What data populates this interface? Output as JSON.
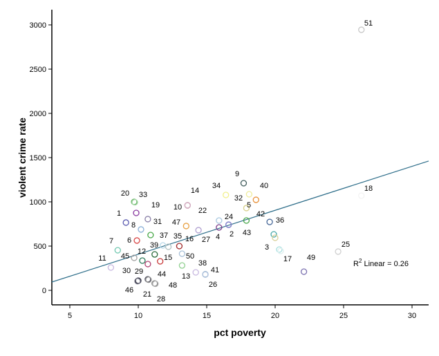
{
  "chart_data": {
    "type": "scatter",
    "xlabel": "pct poverty",
    "ylabel": "violent crime rate",
    "xlim": [
      3.7,
      31.3
    ],
    "ylim": [
      -160,
      3130
    ],
    "xticks": [
      "5",
      "10",
      "15",
      "20",
      "25",
      "30"
    ],
    "yticks": [
      "0",
      "500",
      "1000",
      "1500",
      "2000",
      "2500",
      "3000"
    ],
    "grid": false,
    "fit": {
      "type": "linear",
      "intercept": -89.5,
      "slope": 49.7,
      "color": "#2e6e8a",
      "label": "R",
      "label_sup": "2",
      "label_rest": " Linear = 0.26"
    },
    "points": [
      {
        "label": "51",
        "x": 26.3,
        "y": 2945,
        "color": "#c8c8c8"
      },
      {
        "label": "9",
        "x": 17.7,
        "y": 1211,
        "color": "#3d5a5a"
      },
      {
        "label": "34",
        "x": 16.4,
        "y": 1078,
        "color": "#f2f08c"
      },
      {
        "label": "32",
        "x": 18.1,
        "y": 1086,
        "color": "#f0ec9a"
      },
      {
        "label": "40",
        "x": 18.6,
        "y": 1023,
        "color": "#e8913a"
      },
      {
        "label": "5",
        "x": 17.9,
        "y": 930,
        "color": "#d8d08a"
      },
      {
        "label": "24",
        "x": 17.9,
        "y": 789,
        "color": "#4aa84a"
      },
      {
        "label": "4",
        "x": 16.6,
        "y": 742,
        "color": "#5a5ab8"
      },
      {
        "label": "2",
        "x": 16.6,
        "y": 740,
        "color": "#8888cc"
      },
      {
        "label": "27",
        "x": 15.9,
        "y": 711,
        "color": "#7a3a8a"
      },
      {
        "label": "22",
        "x": 15.9,
        "y": 789,
        "color": "#a8c8e0"
      },
      {
        "label": "16",
        "x": 14.4,
        "y": 680,
        "color": "#b0a0d0"
      },
      {
        "label": "10",
        "x": 13.6,
        "y": 961,
        "color": "#a04070"
      },
      {
        "label": "14",
        "x": 13.6,
        "y": 963,
        "color": "#d8b8c8"
      },
      {
        "label": "47",
        "x": 13.5,
        "y": 727,
        "color": "#e8a040"
      },
      {
        "label": "36",
        "x": 19.6,
        "y": 773,
        "color": "#4a6a9a"
      },
      {
        "label": "42",
        "x": 19.9,
        "y": 633,
        "color": "#48a8a8"
      },
      {
        "label": "43",
        "x": 20.0,
        "y": 594,
        "color": "#d8d098"
      },
      {
        "label": "3",
        "x": 20.3,
        "y": 461,
        "color": "#a8e0e0"
      },
      {
        "label": "17",
        "x": 20.4,
        "y": 445,
        "color": "#e0f0f0"
      },
      {
        "label": "49",
        "x": 22.1,
        "y": 211,
        "color": "#7a70b0"
      },
      {
        "label": "25",
        "x": 24.6,
        "y": 438,
        "color": "#d0d0d0"
      },
      {
        "label": "18",
        "x": 26.3,
        "y": 1070,
        "color": "#f4f4f4"
      },
      {
        "label": "20",
        "x": 9.7,
        "y": 1000,
        "color": "#60b060"
      },
      {
        "label": "33",
        "x": 9.75,
        "y": 995,
        "color": "#a8d8a8"
      },
      {
        "label": "1",
        "x": 9.85,
        "y": 875,
        "color": "#8a3aa0"
      },
      {
        "label": "8",
        "x": 9.1,
        "y": 766,
        "color": "#5a5ab0"
      },
      {
        "label": "31",
        "x": 10.7,
        "y": 805,
        "color": "#8a80a8"
      },
      {
        "label": "19",
        "x": 10.2,
        "y": 688,
        "color": "#8ab0d8"
      },
      {
        "label": "37",
        "x": 10.9,
        "y": 625,
        "color": "#48a848"
      },
      {
        "label": "6",
        "x": 9.9,
        "y": 563,
        "color": "#d84848"
      },
      {
        "label": "7",
        "x": 8.5,
        "y": 453,
        "color": "#70c8b0"
      },
      {
        "label": "11",
        "x": 8.0,
        "y": 258,
        "color": "#c8b8e0"
      },
      {
        "label": "45",
        "x": 9.7,
        "y": 367,
        "color": "#a0a0a0"
      },
      {
        "label": "12",
        "x": 10.3,
        "y": 336,
        "color": "#2a7a5a"
      },
      {
        "label": "39",
        "x": 11.2,
        "y": 406,
        "color": "#2a6a3a"
      },
      {
        "label": "30",
        "x": 10.7,
        "y": 297,
        "color": "#b04070"
      },
      {
        "label": "15",
        "x": 11.6,
        "y": 328,
        "color": "#c83838"
      },
      {
        "label": "",
        "x": 11.8,
        "y": 508,
        "color": "#b8d8e8"
      },
      {
        "label": "",
        "x": 12.2,
        "y": 492,
        "color": "#b0c0c0"
      },
      {
        "label": "35",
        "x": 13.0,
        "y": 500,
        "color": "#a02828"
      },
      {
        "label": "50",
        "x": 13.2,
        "y": 414,
        "color": "#a8c0d8"
      },
      {
        "label": "13",
        "x": 13.2,
        "y": 281,
        "color": "#90d090"
      },
      {
        "label": "38",
        "x": 14.2,
        "y": 203,
        "color": "#c8b8e0"
      },
      {
        "label": "41",
        "x": 14.9,
        "y": 180,
        "color": "#4878a8"
      },
      {
        "label": "26",
        "x": 14.9,
        "y": 178,
        "color": "#b8c8e0"
      },
      {
        "label": "29",
        "x": 10.0,
        "y": 109,
        "color": "#303040"
      },
      {
        "label": "46",
        "x": 9.95,
        "y": 104,
        "color": "#707080"
      },
      {
        "label": "44",
        "x": 10.7,
        "y": 125,
        "color": "#505060"
      },
      {
        "label": "21",
        "x": 10.75,
        "y": 120,
        "color": "#909090"
      },
      {
        "label": "48",
        "x": 11.2,
        "y": 78,
        "color": "#808080"
      },
      {
        "label": "28",
        "x": 11.25,
        "y": 74,
        "color": "#b0b0b0"
      }
    ]
  }
}
